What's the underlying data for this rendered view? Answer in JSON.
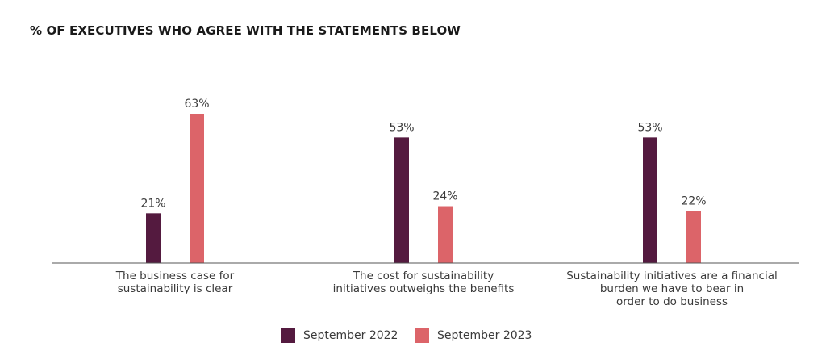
{
  "chart_data": {
    "type": "bar",
    "title": "% OF EXECUTIVES WHO AGREE WITH THE STATEMENTS BELOW",
    "categories": [
      [
        "The business case for",
        "sustainability is clear"
      ],
      [
        "The cost for sustainability",
        "initiatives outweighs the benefits"
      ],
      [
        "Sustainability initiatives are a financial",
        "burden we have to bear in",
        "order to do business"
      ]
    ],
    "series": [
      {
        "name": "September 2022",
        "color": "#541a3f",
        "values": [
          21,
          53,
          53
        ],
        "labels": [
          "21%",
          "53%",
          "53%"
        ]
      },
      {
        "name": "September 2023",
        "color": "#dc6469",
        "values": [
          63,
          24,
          22
        ],
        "labels": [
          "63%",
          "24%",
          "22%"
        ]
      }
    ],
    "ylim": [
      0,
      63
    ],
    "grid": false,
    "legend": "bottom-center"
  }
}
